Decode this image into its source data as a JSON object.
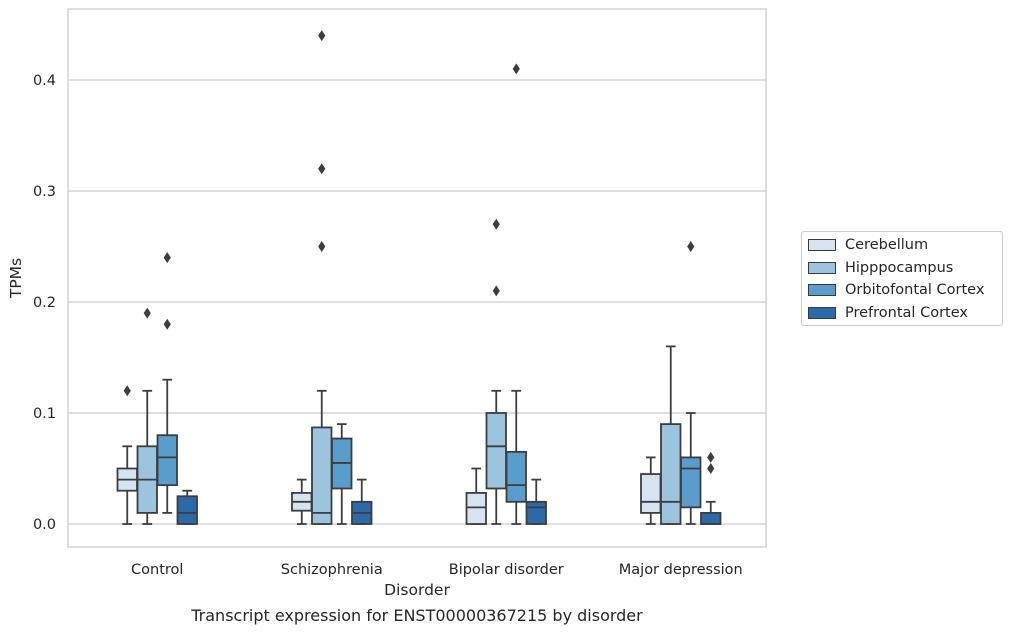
{
  "caption": "Transcript expression for ENST00000367215 by disorder",
  "chart_data": {
    "type": "box",
    "xlabel": "Disorder",
    "ylabel": "TPMs",
    "ylim": [
      -0.021,
      0.464
    ],
    "yticks": [
      "0.0",
      "0.1",
      "0.2",
      "0.3",
      "0.4"
    ],
    "ytick_values": [
      0.0,
      0.1,
      0.2,
      0.3,
      0.4
    ],
    "grid": "horizontal",
    "legend_position": "right",
    "categories": [
      "Control",
      "Schizophrenia",
      "Bipolar disorder",
      "Major depression"
    ],
    "series": [
      {
        "name": "Cerebellum",
        "color": "#d6e4f2",
        "boxes": [
          {
            "whisker_low": 0.0,
            "q1": 0.03,
            "median": 0.04,
            "q3": 0.05,
            "whisker_high": 0.07,
            "outliers": [
              0.12
            ]
          },
          {
            "whisker_low": 0.0,
            "q1": 0.012,
            "median": 0.02,
            "q3": 0.028,
            "whisker_high": 0.04,
            "outliers": []
          },
          {
            "whisker_low": 0.0,
            "q1": 0.0,
            "median": 0.015,
            "q3": 0.028,
            "whisker_high": 0.05,
            "outliers": []
          },
          {
            "whisker_low": 0.0,
            "q1": 0.01,
            "median": 0.02,
            "q3": 0.045,
            "whisker_high": 0.06,
            "outliers": []
          }
        ]
      },
      {
        "name": "Hipppocampus",
        "color": "#9cc4df",
        "boxes": [
          {
            "whisker_low": 0.0,
            "q1": 0.01,
            "median": 0.04,
            "q3": 0.07,
            "whisker_high": 0.12,
            "outliers": [
              0.19
            ]
          },
          {
            "whisker_low": 0.0,
            "q1": 0.0,
            "median": 0.01,
            "q3": 0.087,
            "whisker_high": 0.12,
            "outliers": [
              0.44,
              0.32,
              0.25
            ]
          },
          {
            "whisker_low": 0.0,
            "q1": 0.032,
            "median": 0.07,
            "q3": 0.1,
            "whisker_high": 0.12,
            "outliers": [
              0.27,
              0.21
            ]
          },
          {
            "whisker_low": 0.0,
            "q1": 0.0,
            "median": 0.02,
            "q3": 0.09,
            "whisker_high": 0.16,
            "outliers": []
          }
        ]
      },
      {
        "name": "Orbitofontal Cortex",
        "color": "#5a9ccc",
        "boxes": [
          {
            "whisker_low": 0.01,
            "q1": 0.035,
            "median": 0.06,
            "q3": 0.08,
            "whisker_high": 0.13,
            "outliers": [
              0.24,
              0.18
            ]
          },
          {
            "whisker_low": 0.0,
            "q1": 0.032,
            "median": 0.055,
            "q3": 0.077,
            "whisker_high": 0.09,
            "outliers": []
          },
          {
            "whisker_low": 0.0,
            "q1": 0.02,
            "median": 0.035,
            "q3": 0.065,
            "whisker_high": 0.12,
            "outliers": [
              0.41
            ]
          },
          {
            "whisker_low": 0.0,
            "q1": 0.015,
            "median": 0.05,
            "q3": 0.06,
            "whisker_high": 0.1,
            "outliers": [
              0.25
            ]
          }
        ]
      },
      {
        "name": "Prefrontal Cortex",
        "color": "#2b69a8",
        "boxes": [
          {
            "whisker_low": 0.0,
            "q1": 0.0,
            "median": 0.01,
            "q3": 0.025,
            "whisker_high": 0.03,
            "outliers": []
          },
          {
            "whisker_low": 0.0,
            "q1": 0.0,
            "median": 0.01,
            "q3": 0.02,
            "whisker_high": 0.04,
            "outliers": []
          },
          {
            "whisker_low": 0.0,
            "q1": 0.0,
            "median": 0.015,
            "q3": 0.02,
            "whisker_high": 0.04,
            "outliers": []
          },
          {
            "whisker_low": 0.0,
            "q1": 0.0,
            "median": 0.0,
            "q3": 0.01,
            "whisker_high": 0.02,
            "outliers": [
              0.06,
              0.05
            ]
          }
        ]
      }
    ]
  }
}
